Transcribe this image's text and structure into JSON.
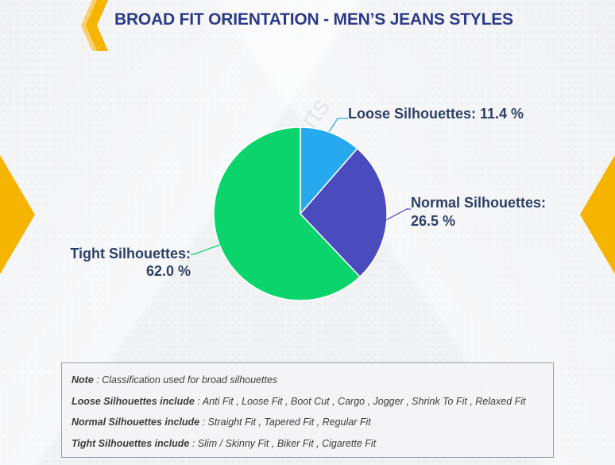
{
  "header": {
    "title": "BROAD FIT ORIENTATION - MEN’S JEANS STYLES"
  },
  "colors": {
    "accent": "#f5b400",
    "title": "#2b3a86",
    "label": "#2c3f66",
    "loose": "#27a9f0",
    "normal": "#4a4bbd",
    "tight": "#0cd46c"
  },
  "watermark": "© & J Reports",
  "chart_data": {
    "type": "pie",
    "title": "",
    "slices": [
      {
        "label": "Loose Silhouettes:",
        "value": 11.4,
        "value_label": "11.4 %",
        "color": "#27a9f0"
      },
      {
        "label": "Normal Silhouettes:",
        "value": 26.5,
        "value_label": "26.5 %",
        "color": "#4a4bbd"
      },
      {
        "label": "Tight Silhouettes:",
        "value": 62.0,
        "value_label": "62.0 %",
        "color": "#0cd46c"
      }
    ],
    "start_angle": "12 o'clock",
    "direction": "clockwise",
    "legend": "none"
  },
  "note": {
    "lines": [
      {
        "key": "Note",
        "text": " : Classification used for broad silhouettes"
      },
      {
        "key": "Loose Silhouettes include",
        "text": " : Anti Fit , Loose Fit , Boot Cut , Cargo , Jogger , Shrink To Fit , Relaxed Fit"
      },
      {
        "key": "Normal Silhouettes include",
        "text": " : Straight Fit , Tapered Fit , Regular Fit"
      },
      {
        "key": "Tight Silhouettes include",
        "text": " : Slim / Skinny Fit , Biker Fit , Cigarette Fit"
      }
    ]
  }
}
